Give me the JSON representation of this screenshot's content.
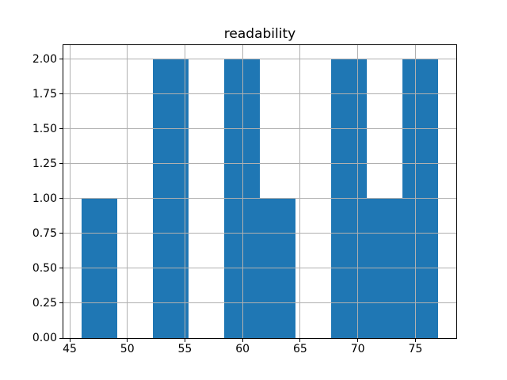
{
  "chart_data": {
    "type": "bar",
    "subtype": "histogram",
    "title": "readability",
    "xlabel": "",
    "ylabel": "",
    "bin_edges": [
      46.0,
      49.1,
      52.2,
      55.3,
      58.4,
      61.5,
      64.6,
      67.7,
      70.8,
      73.9,
      77.0
    ],
    "counts": [
      1,
      0,
      2,
      0,
      2,
      1,
      0,
      2,
      1,
      2
    ],
    "series": [
      {
        "name": "readability",
        "values": [
          1,
          0,
          2,
          0,
          2,
          1,
          0,
          2,
          1,
          2
        ]
      }
    ],
    "xlim": [
      44.45,
      78.55
    ],
    "ylim": [
      0,
      2.1
    ],
    "xticks": [
      45,
      50,
      55,
      60,
      65,
      70,
      75
    ],
    "xtick_labels": [
      "45",
      "50",
      "55",
      "60",
      "65",
      "70",
      "75"
    ],
    "yticks": [
      0,
      0.25,
      0.5,
      0.75,
      1.0,
      1.25,
      1.5,
      1.75,
      2.0
    ],
    "ytick_labels": [
      "0.00",
      "0.25",
      "0.50",
      "0.75",
      "1.00",
      "1.25",
      "1.50",
      "1.75",
      "2.00"
    ],
    "grid": true,
    "grid_above_bars": true,
    "legend": "none",
    "bar_color": "#1f77b4",
    "grid_color": "#b0b0b0",
    "axis_color": "#000000",
    "text_color": "#000000",
    "background_color": "#ffffff"
  }
}
